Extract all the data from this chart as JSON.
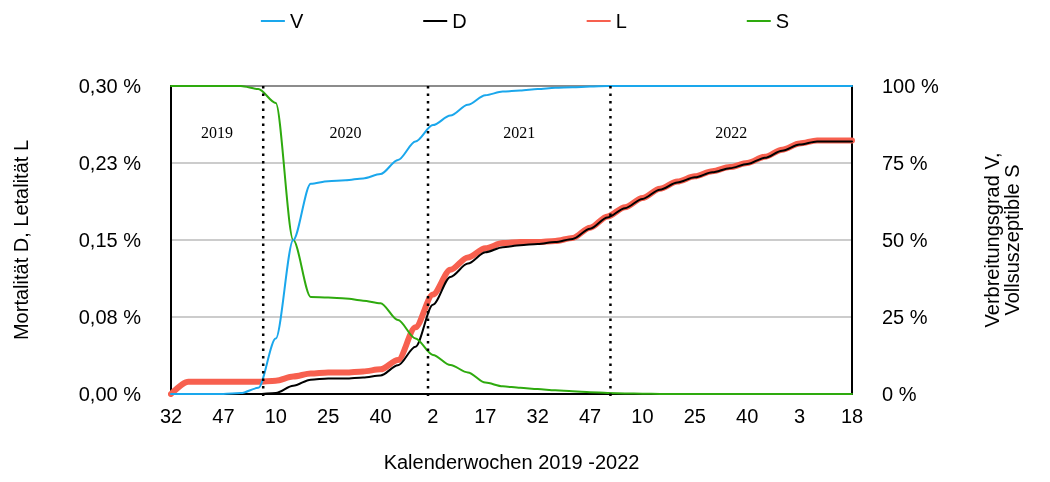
{
  "chart_data": {
    "type": "line",
    "xlabel": "Kalenderwochen 2019 -2022",
    "ylabel": "Mortalität D, Letalität L",
    "y2label": "Verbreitungsgrad V,\nVollsuszeptible S",
    "categories": [
      "32",
      null,
      null,
      "47",
      null,
      null,
      "10",
      null,
      null,
      "25",
      null,
      null,
      "40",
      null,
      null,
      "2",
      null,
      null,
      "17",
      null,
      null,
      "32",
      null,
      null,
      "47",
      null,
      null,
      "10",
      null,
      null,
      "25",
      null,
      null,
      "40",
      null,
      null,
      "3",
      null,
      null,
      "18"
    ],
    "ylim": [
      0,
      0.3
    ],
    "yticks": [
      {
        "value": 0,
        "label": "0,00 %"
      },
      {
        "value": 0.075,
        "label": "0,08 %"
      },
      {
        "value": 0.15,
        "label": "0,15 %"
      },
      {
        "value": 0.225,
        "label": "0,23 %"
      },
      {
        "value": 0.3,
        "label": "0,30 %"
      }
    ],
    "y2lim": [
      0,
      100
    ],
    "y2ticks": [
      {
        "value": 0,
        "label": "0 %"
      },
      {
        "value": 25,
        "label": "25 %"
      },
      {
        "value": 50,
        "label": "50 %"
      },
      {
        "value": 75,
        "label": "75 %"
      },
      {
        "value": 100,
        "label": "100 %"
      }
    ],
    "grid": "y",
    "legend": "top",
    "marker": "none",
    "line_style": "solid",
    "series": [
      {
        "name": "V",
        "color": "#1aa7ec",
        "axis": "y2",
        "values": [
          0,
          0,
          0,
          0,
          0.3,
          2,
          18,
          50,
          68.3,
          69.1,
          69.4,
          70,
          71.4,
          76,
          82,
          87.3,
          90.4,
          93.9,
          97,
          98.2,
          98.5,
          99,
          99.4,
          99.6,
          99.8,
          100,
          100,
          100,
          100,
          100,
          100,
          100,
          100,
          100,
          100,
          100,
          100,
          100,
          100,
          100
        ]
      },
      {
        "name": "D",
        "color": "#000000",
        "values": [
          null,
          null,
          null,
          0,
          0,
          0,
          0.001,
          0.008,
          0.014,
          0.015,
          0.015,
          0.016,
          0.018,
          0.028,
          0.046,
          0.087,
          0.114,
          0.127,
          0.138,
          0.143,
          0.145,
          0.146,
          0.148,
          0.151,
          0.161,
          0.172,
          0.181,
          0.19,
          0.199,
          0.206,
          0.211,
          0.216,
          0.22,
          0.224,
          0.23,
          0.237,
          0.243,
          0.246,
          0.246,
          0.246
        ]
      },
      {
        "name": "L",
        "color": "#f7604f",
        "values": [
          0,
          0.012,
          0.012,
          0.012,
          0.012,
          0.012,
          0.013,
          0.017,
          0.02,
          0.021,
          0.021,
          0.022,
          0.024,
          0.033,
          0.065,
          0.097,
          0.121,
          0.133,
          0.142,
          0.147,
          0.148,
          0.148,
          0.149,
          0.152,
          0.162,
          0.173,
          0.182,
          0.191,
          0.2,
          0.207,
          0.212,
          0.217,
          0.221,
          0.225,
          0.231,
          0.238,
          0.244,
          0.247,
          0.247,
          0.247
        ]
      },
      {
        "name": "S",
        "color": "#2eaa0e",
        "axis": "y2",
        "values": [
          100,
          100,
          100,
          100,
          100,
          99,
          94.5,
          50,
          31.5,
          31.3,
          31,
          30.3,
          29.5,
          24,
          18,
          12.7,
          9.4,
          7,
          3.7,
          2.5,
          2,
          1.6,
          1.2,
          0.9,
          0.6,
          0.3,
          0.2,
          0.1,
          0,
          0,
          0,
          0,
          0,
          0,
          0,
          0,
          0,
          0,
          0,
          0
        ]
      }
    ],
    "annotations": [
      "2019",
      "2020",
      "2021",
      "2022"
    ]
  }
}
